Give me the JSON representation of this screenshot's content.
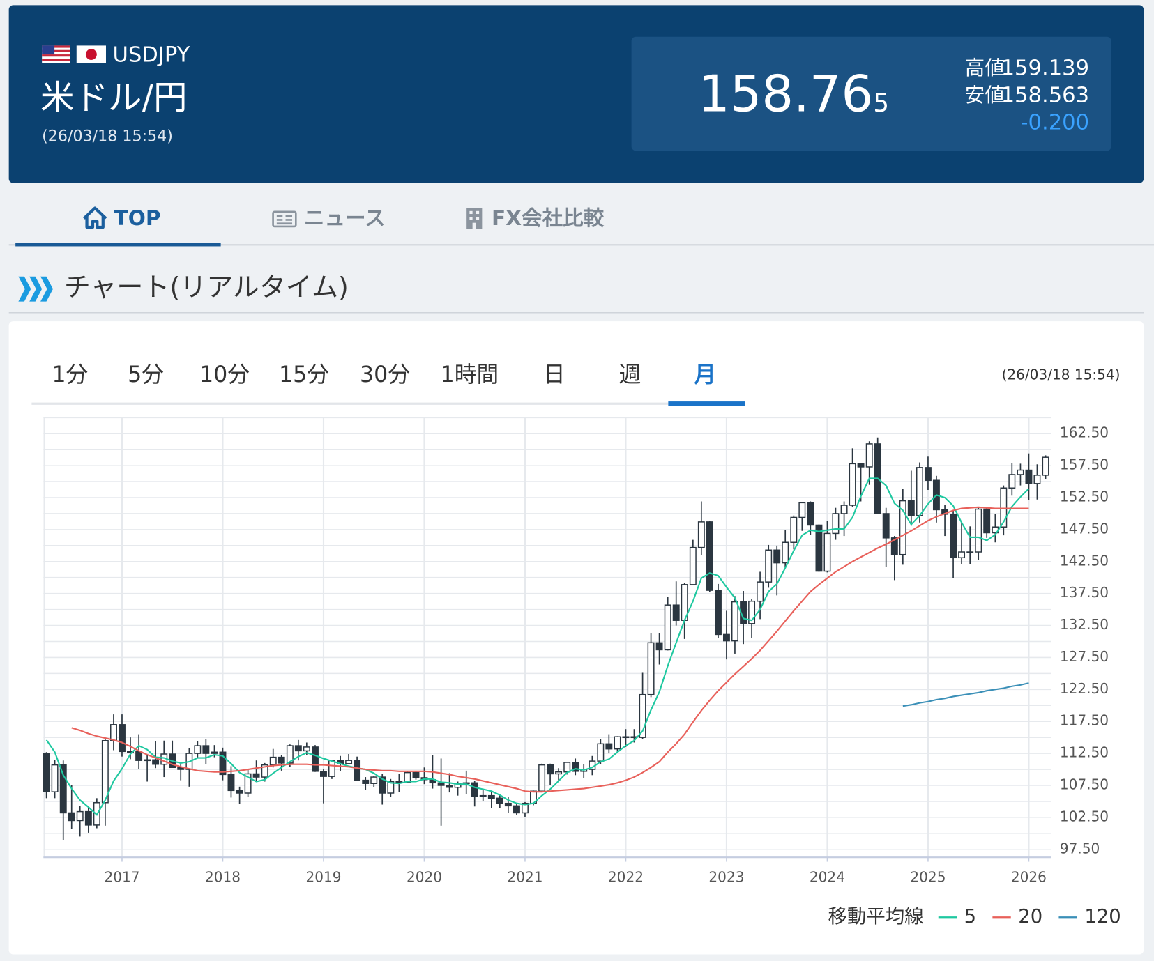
{
  "header": {
    "symbol": "USDJPY",
    "name": "米ドル/円",
    "time": "(26/03/18 15:54)",
    "price": "158.76",
    "price_last_digit": "5",
    "high_label": "高値",
    "high": "159.139",
    "low_label": "安値",
    "low": "158.563",
    "change": "-0.200"
  },
  "tabs": [
    "TOP",
    "ニュース",
    "FX会社比較"
  ],
  "section_title": "チャート(リアルタイム)",
  "timeframes": [
    "1分",
    "5分",
    "10分",
    "15分",
    "30分",
    "1時間",
    "日",
    "週",
    "月"
  ],
  "chart_time": "(26/03/18 15:54)",
  "legend_title": "移動平均線",
  "chart_data": {
    "type": "candlestick",
    "x": [
      2016.25,
      2016.333,
      2016.417,
      2016.5,
      2016.583,
      2016.667,
      2016.75,
      2016.833,
      2016.917,
      2017,
      2017.083,
      2017.167,
      2017.25,
      2017.333,
      2017.417,
      2017.5,
      2017.583,
      2017.667,
      2017.75,
      2017.833,
      2017.917,
      2018,
      2018.083,
      2018.167,
      2018.25,
      2018.333,
      2018.417,
      2018.5,
      2018.583,
      2018.667,
      2018.75,
      2018.833,
      2018.917,
      2019,
      2019.083,
      2019.167,
      2019.25,
      2019.333,
      2019.417,
      2019.5,
      2019.583,
      2019.667,
      2019.75,
      2019.833,
      2019.917,
      2020,
      2020.083,
      2020.167,
      2020.25,
      2020.333,
      2020.417,
      2020.5,
      2020.583,
      2020.667,
      2020.75,
      2020.833,
      2020.917,
      2021,
      2021.083,
      2021.167,
      2021.25,
      2021.333,
      2021.417,
      2021.5,
      2021.583,
      2021.667,
      2021.75,
      2021.833,
      2021.917,
      2022,
      2022.083,
      2022.167,
      2022.25,
      2022.333,
      2022.417,
      2022.5,
      2022.583,
      2022.667,
      2022.75,
      2022.833,
      2022.917,
      2023,
      2023.083,
      2023.167,
      2023.25,
      2023.333,
      2023.417,
      2023.5,
      2023.583,
      2023.667,
      2023.75,
      2023.833,
      2023.917,
      2024,
      2024.083,
      2024.167,
      2024.25,
      2024.333,
      2024.417,
      2024.5,
      2024.583,
      2024.667,
      2024.75,
      2024.833,
      2024.917,
      2025,
      2025.083,
      2025.167,
      2025.25,
      2025.333,
      2025.417,
      2025.5,
      2025.583,
      2025.667,
      2025.75,
      2025.833,
      2025.917,
      2026,
      2026.083,
      2026.167
    ],
    "open": [
      112.5,
      106.5,
      110.7,
      103.2,
      102.0,
      103.4,
      101.3,
      104.8,
      114.5,
      117.0,
      112.8,
      112.8,
      111.4,
      111.5,
      110.8,
      112.4,
      110.3,
      110.0,
      112.5,
      113.7,
      112.5,
      112.7,
      109.2,
      106.7,
      106.3,
      109.3,
      108.8,
      110.7,
      111.9,
      111.0,
      113.7,
      112.9,
      113.5,
      109.7,
      108.9,
      111.4,
      110.9,
      111.4,
      108.3,
      107.8,
      108.8,
      106.3,
      108.1,
      108.0,
      109.5,
      108.7,
      108.4,
      107.9,
      107.5,
      107.2,
      107.8,
      107.9,
      105.8,
      105.9,
      105.5,
      104.7,
      104.3,
      103.2,
      104.7,
      106.6,
      110.7,
      109.3,
      109.6,
      111.1,
      109.7,
      110.0,
      111.3,
      114.0,
      113.2,
      115.1,
      115.1,
      115.0,
      121.7,
      129.8,
      128.7,
      135.7,
      133.3,
      138.9,
      144.7,
      148.7,
      138.0,
      131.1,
      130.1,
      136.2,
      132.8,
      136.3,
      139.3,
      144.3,
      142.3,
      145.5,
      149.4,
      151.7,
      148.2,
      141.0,
      146.9,
      150.0,
      151.3,
      157.8,
      157.3,
      160.9,
      150.0,
      146.2,
      143.6,
      152.0,
      149.7,
      157.2,
      155.2,
      150.6,
      149.9,
      143.1,
      144.0,
      144.0,
      150.7,
      147.0,
      147.9,
      154.0,
      156.1,
      156.8,
      154.7,
      156.0
    ],
    "high": [
      112.7,
      111.5,
      111.4,
      107.5,
      104.3,
      104.3,
      105.5,
      114.8,
      118.6,
      118.6,
      115.0,
      115.5,
      112.2,
      114.4,
      114.5,
      114.5,
      111.0,
      113.3,
      114.4,
      114.7,
      113.8,
      113.4,
      110.5,
      107.3,
      109.9,
      111.4,
      111.0,
      113.2,
      112.2,
      113.9,
      114.6,
      114.2,
      113.8,
      110.0,
      111.5,
      112.1,
      112.4,
      112.0,
      108.8,
      109.0,
      109.3,
      108.5,
      109.3,
      109.7,
      109.7,
      110.3,
      112.2,
      111.7,
      109.4,
      108.1,
      109.8,
      108.2,
      107.0,
      106.6,
      106.1,
      105.7,
      104.7,
      104.9,
      106.7,
      110.9,
      110.9,
      110.2,
      111.1,
      111.7,
      110.8,
      112.1,
      114.7,
      115.5,
      115.2,
      116.3,
      116.3,
      125.1,
      131.3,
      131.3,
      137.0,
      139.4,
      139.1,
      145.9,
      151.9,
      148.8,
      139.0,
      134.8,
      137.1,
      137.9,
      136.6,
      140.9,
      145.1,
      145.0,
      147.4,
      149.7,
      151.7,
      151.9,
      148.3,
      148.8,
      150.9,
      151.9,
      160.2,
      157.9,
      161.3,
      161.9,
      150.9,
      146.5,
      153.9,
      156.7,
      158.0,
      158.9,
      155.9,
      151.3,
      150.5,
      148.7,
      148.0,
      150.9,
      150.9,
      149.9,
      154.4,
      157.9,
      157.8,
      159.4,
      157.7,
      159.1
    ],
    "low": [
      105.5,
      105.5,
      99.0,
      100.7,
      99.5,
      100.1,
      100.8,
      101.2,
      113.0,
      112.0,
      111.6,
      110.1,
      108.1,
      110.2,
      108.8,
      110.6,
      108.3,
      107.3,
      111.7,
      110.8,
      111.9,
      108.3,
      105.6,
      104.6,
      105.7,
      108.1,
      108.1,
      110.3,
      109.8,
      110.4,
      111.4,
      112.3,
      109.6,
      104.7,
      108.5,
      109.7,
      110.8,
      108.3,
      106.8,
      107.2,
      104.5,
      105.7,
      106.5,
      107.9,
      108.4,
      107.7,
      107.0,
      101.2,
      106.4,
      105.9,
      106.1,
      104.2,
      105.1,
      104.0,
      104.0,
      103.2,
      102.9,
      102.6,
      104.4,
      106.4,
      107.5,
      108.3,
      109.2,
      109.1,
      108.7,
      109.1,
      110.8,
      112.5,
      112.6,
      113.5,
      114.2,
      114.7,
      121.3,
      126.4,
      128.6,
      132.5,
      130.4,
      138.8,
      143.5,
      137.7,
      130.6,
      127.2,
      128.1,
      129.6,
      130.6,
      133.5,
      138.4,
      137.2,
      141.5,
      144.4,
      147.3,
      146.7,
      140.9,
      140.8,
      145.9,
      146.5,
      151.0,
      151.9,
      154.5,
      149.9,
      141.7,
      139.6,
      142.0,
      148.1,
      148.6,
      153.7,
      148.6,
      146.5,
      139.9,
      142.1,
      142.1,
      142.7,
      146.2,
      145.5,
      146.6,
      152.8,
      154.4,
      152.1,
      152.2,
      155.4
    ],
    "close": [
      106.5,
      110.7,
      103.2,
      102.0,
      103.4,
      101.3,
      104.8,
      114.5,
      117.0,
      112.8,
      112.8,
      111.4,
      111.5,
      110.8,
      112.4,
      110.3,
      110.0,
      112.5,
      113.7,
      112.5,
      112.7,
      109.2,
      106.7,
      106.3,
      109.3,
      108.8,
      110.7,
      111.9,
      111.0,
      113.7,
      112.9,
      113.5,
      109.7,
      108.9,
      111.4,
      110.9,
      111.4,
      108.3,
      107.8,
      108.8,
      106.3,
      108.1,
      108.0,
      109.5,
      108.7,
      108.4,
      107.9,
      107.5,
      107.2,
      107.8,
      107.9,
      105.8,
      105.9,
      105.5,
      104.7,
      104.3,
      103.2,
      104.7,
      106.6,
      110.7,
      109.3,
      109.6,
      111.1,
      109.7,
      110.0,
      111.3,
      114.0,
      113.2,
      115.1,
      115.1,
      115.0,
      121.7,
      129.8,
      128.7,
      135.7,
      133.3,
      138.9,
      144.7,
      148.7,
      138.0,
      131.1,
      130.1,
      136.2,
      132.8,
      136.3,
      139.3,
      144.3,
      142.3,
      145.5,
      149.4,
      151.7,
      148.2,
      141.0,
      146.9,
      150.0,
      151.3,
      157.8,
      157.3,
      160.9,
      150.0,
      146.2,
      143.6,
      152.0,
      149.7,
      157.2,
      155.2,
      150.6,
      149.9,
      143.1,
      144.0,
      144.0,
      150.7,
      147.0,
      147.9,
      154.0,
      156.1,
      156.8,
      154.7,
      156.0,
      158.8
    ],
    "bull_fill": "#ffffff",
    "bear_fill": "#2b3640",
    "candle_stroke": "#2b3640",
    "series": [
      {
        "name": "5",
        "color": "#1fc8a0",
        "values": [
          114.6,
          112.7,
          109.1,
          107.0,
          105.2,
          104.1,
          102.9,
          105.2,
          108.2,
          110.1,
          112.4,
          113.7,
          113.1,
          111.9,
          111.8,
          111.3,
          111.0,
          111.2,
          111.8,
          111.8,
          112.3,
          112.1,
          110.9,
          109.5,
          108.8,
          108.1,
          108.4,
          109.4,
          110.3,
          111.2,
          112.0,
          112.6,
          112.2,
          111.7,
          111.3,
          110.9,
          110.5,
          110.2,
          110.0,
          109.4,
          108.5,
          107.9,
          107.8,
          108.1,
          108.1,
          108.5,
          108.5,
          108.0,
          107.9,
          107.7,
          107.7,
          107.2,
          106.9,
          106.6,
          106.0,
          105.2,
          104.7,
          104.5,
          104.7,
          105.9,
          106.9,
          108.2,
          109.5,
          110.1,
          109.9,
          110.3,
          111.2,
          111.6,
          112.7,
          113.7,
          114.5,
          116.0,
          119.3,
          122.1,
          126.2,
          129.8,
          133.3,
          136.3,
          139.9,
          140.7,
          140.3,
          138.5,
          136.8,
          133.6,
          133.3,
          135.0,
          137.8,
          139.0,
          141.5,
          144.2,
          146.6,
          147.4,
          147.2,
          147.4,
          147.6,
          147.6,
          149.4,
          152.7,
          155.5,
          155.5,
          154.4,
          151.6,
          150.5,
          148.3,
          149.7,
          151.5,
          152.9,
          152.5,
          151.2,
          148.6,
          146.3,
          146.3,
          145.8,
          146.7,
          148.7,
          151.1,
          152.6,
          153.9,
          null,
          null
        ]
      },
      {
        "name": "20",
        "color": "#e8605a",
        "values": [
          null,
          null,
          null,
          116.5,
          116.1,
          115.6,
          115.2,
          114.9,
          114.6,
          114.2,
          113.6,
          112.9,
          112.3,
          111.8,
          111.3,
          110.8,
          110.4,
          110.1,
          109.8,
          109.7,
          109.6,
          109.6,
          109.7,
          109.8,
          110.0,
          110.2,
          110.4,
          110.6,
          110.7,
          110.8,
          110.8,
          110.8,
          110.7,
          110.7,
          110.6,
          110.5,
          110.4,
          110.2,
          110.0,
          109.9,
          109.8,
          109.8,
          109.7,
          109.7,
          109.7,
          109.7,
          109.6,
          109.4,
          109.2,
          108.9,
          108.7,
          108.5,
          108.2,
          107.9,
          107.6,
          107.3,
          107.0,
          106.6,
          106.5,
          106.5,
          106.6,
          106.7,
          106.8,
          106.9,
          107.0,
          107.2,
          107.4,
          107.6,
          107.9,
          108.3,
          108.8,
          109.5,
          110.3,
          111.2,
          112.7,
          114.0,
          115.5,
          117.4,
          119.2,
          120.8,
          122.3,
          123.6,
          124.9,
          126.1,
          127.3,
          128.6,
          130.1,
          131.6,
          133.2,
          134.8,
          136.3,
          137.8,
          138.9,
          139.9,
          140.9,
          141.7,
          142.5,
          143.2,
          143.9,
          144.6,
          145.2,
          145.9,
          146.6,
          147.3,
          148.1,
          148.9,
          149.5,
          150.0,
          150.5,
          150.8,
          150.9,
          151.0,
          150.9,
          150.8,
          150.8,
          150.8,
          150.8,
          150.8,
          null,
          null
        ]
      },
      {
        "name": "120",
        "color": "#3a8fb7",
        "values": [
          null,
          null,
          null,
          null,
          null,
          null,
          null,
          null,
          null,
          null,
          null,
          null,
          null,
          null,
          null,
          null,
          null,
          null,
          null,
          null,
          null,
          null,
          null,
          null,
          null,
          null,
          null,
          null,
          null,
          null,
          null,
          null,
          null,
          null,
          null,
          null,
          null,
          null,
          null,
          null,
          null,
          null,
          null,
          null,
          null,
          null,
          null,
          null,
          null,
          null,
          null,
          null,
          null,
          null,
          null,
          null,
          null,
          null,
          null,
          null,
          null,
          null,
          null,
          null,
          null,
          null,
          null,
          null,
          null,
          null,
          null,
          null,
          null,
          null,
          null,
          null,
          null,
          null,
          null,
          null,
          null,
          null,
          null,
          null,
          null,
          null,
          null,
          null,
          null,
          null,
          null,
          null,
          null,
          null,
          null,
          null,
          null,
          null,
          null,
          null,
          null,
          null,
          119.9,
          120.1,
          120.4,
          120.6,
          120.9,
          121.1,
          121.4,
          121.6,
          121.8,
          122.0,
          122.3,
          122.5,
          122.7,
          123.0,
          123.2,
          123.5,
          null,
          null
        ]
      }
    ],
    "xlim": [
      2016.22,
      2026.22
    ],
    "xticks": [
      2017,
      2018,
      2019,
      2020,
      2021,
      2022,
      2023,
      2024,
      2025,
      2026
    ],
    "ylim": [
      96.25,
      165
    ],
    "yticks": [
      {
        "value": 97.5,
        "label": "97.50"
      },
      {
        "value": 102.5,
        "label": "102.50"
      },
      {
        "value": 107.5,
        "label": "107.50"
      },
      {
        "value": 112.5,
        "label": "112.50"
      },
      {
        "value": 117.5,
        "label": "117.50"
      },
      {
        "value": 122.5,
        "label": "122.50"
      },
      {
        "value": 127.5,
        "label": "127.50"
      },
      {
        "value": 132.5,
        "label": "132.50"
      },
      {
        "value": 137.5,
        "label": "137.50"
      },
      {
        "value": 142.5,
        "label": "142.50"
      },
      {
        "value": 147.5,
        "label": "147.50"
      },
      {
        "value": 152.5,
        "label": "152.50"
      },
      {
        "value": 157.5,
        "label": "157.50"
      },
      {
        "value": 162.5,
        "label": "162.50"
      }
    ],
    "ygrid_minor": [
      100,
      105,
      110,
      115,
      120,
      125,
      130,
      135,
      140,
      145,
      150,
      155,
      160,
      165
    ],
    "grid": true,
    "legend": "bottom-right"
  }
}
